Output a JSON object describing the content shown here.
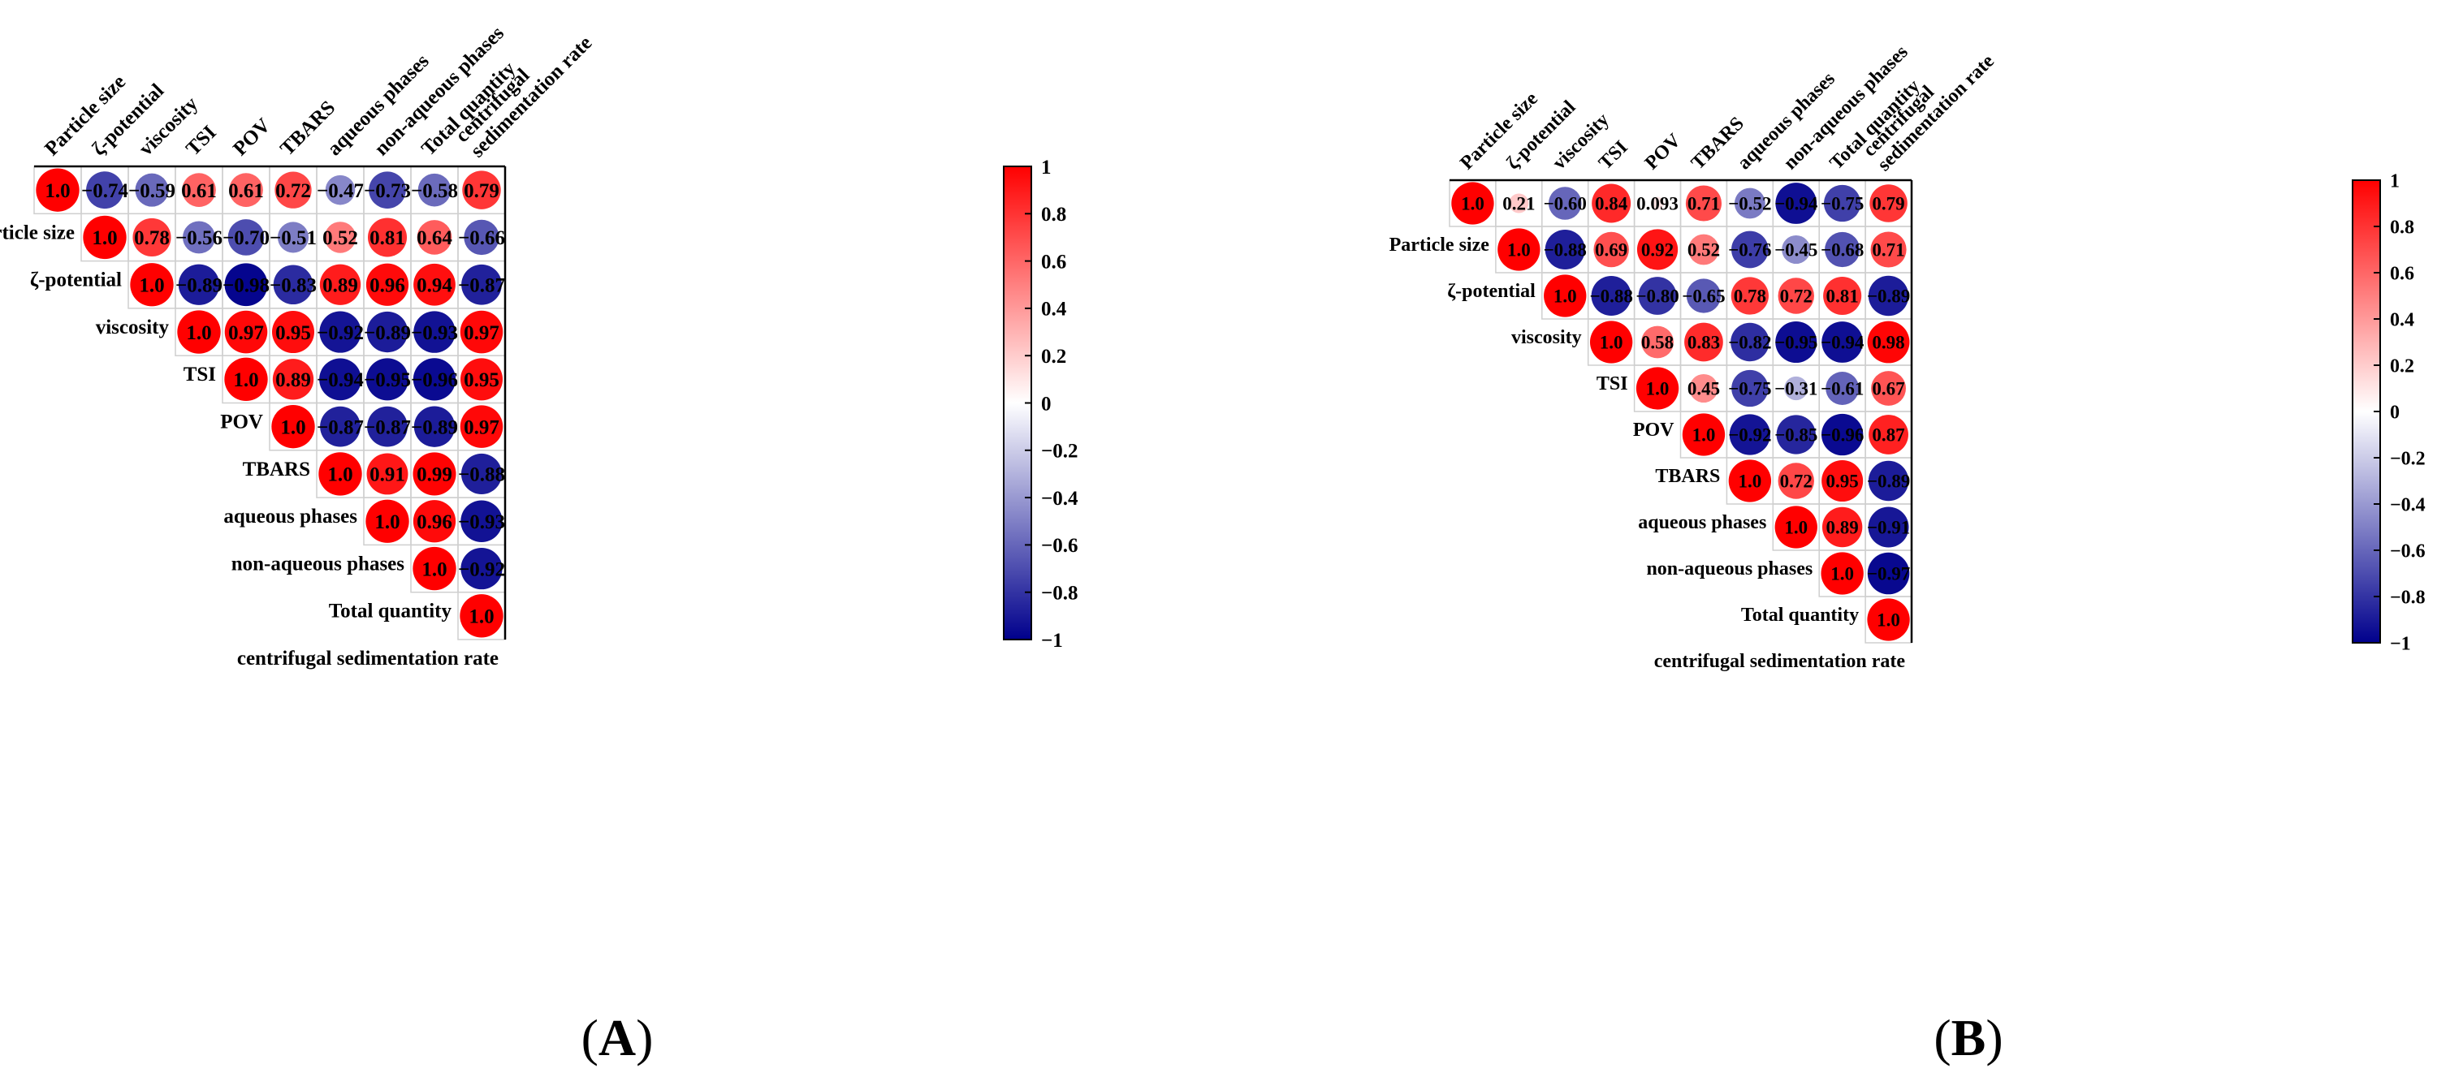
{
  "chart_data": [
    {
      "type": "heatmap",
      "subtype": "correlogram-upper-triangle",
      "title": "",
      "panel_label": "(A)",
      "variables": [
        "Particle size",
        "ζ-potential",
        "viscosity",
        "TSI",
        "POV",
        "TBARS",
        "aqueous phases",
        "non-aqueous phases",
        "Total quantity",
        "centrifugal sedimentation rate"
      ],
      "column_labels": [
        "Particle size",
        "ζ-potential",
        "viscosity",
        "TSI",
        "POV",
        "TBARS",
        "aqueous phases",
        "non-aqueous phases",
        "Total quantity",
        [
          "centrifugal",
          "sedimentation rate"
        ]
      ],
      "rows": [
        [
          "1.0",
          "−0.74",
          "−0.59",
          "0.61",
          "0.61",
          "0.72",
          "−0.47",
          "−0.73",
          "−0.58",
          "0.79"
        ],
        [
          "1.0",
          "0.78",
          "−0.56",
          "−0.70",
          "−0.51",
          "0.52",
          "0.81",
          "0.64",
          "−0.66"
        ],
        [
          "1.0",
          "−0.89",
          "−0.98",
          "−0.83",
          "0.89",
          "0.96",
          "0.94",
          "−0.87"
        ],
        [
          "1.0",
          "0.97",
          "0.95",
          "−0.92",
          "−0.89",
          "−0.93",
          "0.97"
        ],
        [
          "1.0",
          "0.89",
          "−0.94",
          "−0.95",
          "−0.96",
          "0.95"
        ],
        [
          "1.0",
          "−0.87",
          "−0.87",
          "−0.89",
          "0.97"
        ],
        [
          "1.0",
          "0.91",
          "0.99",
          "−0.88"
        ],
        [
          "1.0",
          "0.96",
          "−0.93"
        ],
        [
          "1.0",
          "−0.92"
        ],
        [
          "1.0"
        ]
      ],
      "colorbar": {
        "range": [
          -1,
          1
        ],
        "ticks": [
          "1",
          "0.8",
          "0.6",
          "0.4",
          "0.2",
          "0",
          "−0.2",
          "−0.4",
          "−0.6",
          "−0.8",
          "−1"
        ]
      }
    },
    {
      "type": "heatmap",
      "subtype": "correlogram-upper-triangle",
      "title": "",
      "panel_label": "(B)",
      "variables": [
        "Particle size",
        "ζ-potential",
        "viscosity",
        "TSI",
        "POV",
        "TBARS",
        "aqueous phases",
        "non-aqueous phases",
        "Total quantity",
        "centrifugal sedimentation rate"
      ],
      "column_labels": [
        "Particle size",
        "ζ-potential",
        "viscosity",
        "TSI",
        "POV",
        "TBARS",
        "aqueous phases",
        "non-aqueous phases",
        "Total quantity",
        [
          "centrifugal",
          "sedimentation rate"
        ]
      ],
      "rows": [
        [
          "1.0",
          "0.21",
          "−0.60",
          "0.84",
          "0.093",
          "0.71",
          "−0.52",
          "−0.94",
          "−0.75",
          "0.79"
        ],
        [
          "1.0",
          "−0.88",
          "0.69",
          "0.92",
          "0.52",
          "−0.76",
          "−0.45",
          "−0.68",
          "0.71"
        ],
        [
          "1.0",
          "−0.88",
          "−0.80",
          "−0.65",
          "0.78",
          "0.72",
          "0.81",
          "−0.89"
        ],
        [
          "1.0",
          "0.58",
          "0.83",
          "−0.82",
          "−0.95",
          "−0.94",
          "0.98"
        ],
        [
          "1.0",
          "0.45",
          "−0.75",
          "−0.31",
          "−0.61",
          "0.67"
        ],
        [
          "1.0",
          "−0.92",
          "−0.85",
          "−0.96",
          "0.87"
        ],
        [
          "1.0",
          "0.72",
          "0.95",
          "−0.89"
        ],
        [
          "1.0",
          "0.89",
          "−0.91"
        ],
        [
          "1.0",
          "−0.97"
        ],
        [
          "1.0"
        ]
      ],
      "colorbar": {
        "range": [
          -1,
          1
        ],
        "ticks": [
          "1",
          "0.8",
          "0.6",
          "0.4",
          "0.2",
          "0",
          "−0.2",
          "−0.4",
          "−0.6",
          "−0.8",
          "−1"
        ]
      }
    }
  ]
}
